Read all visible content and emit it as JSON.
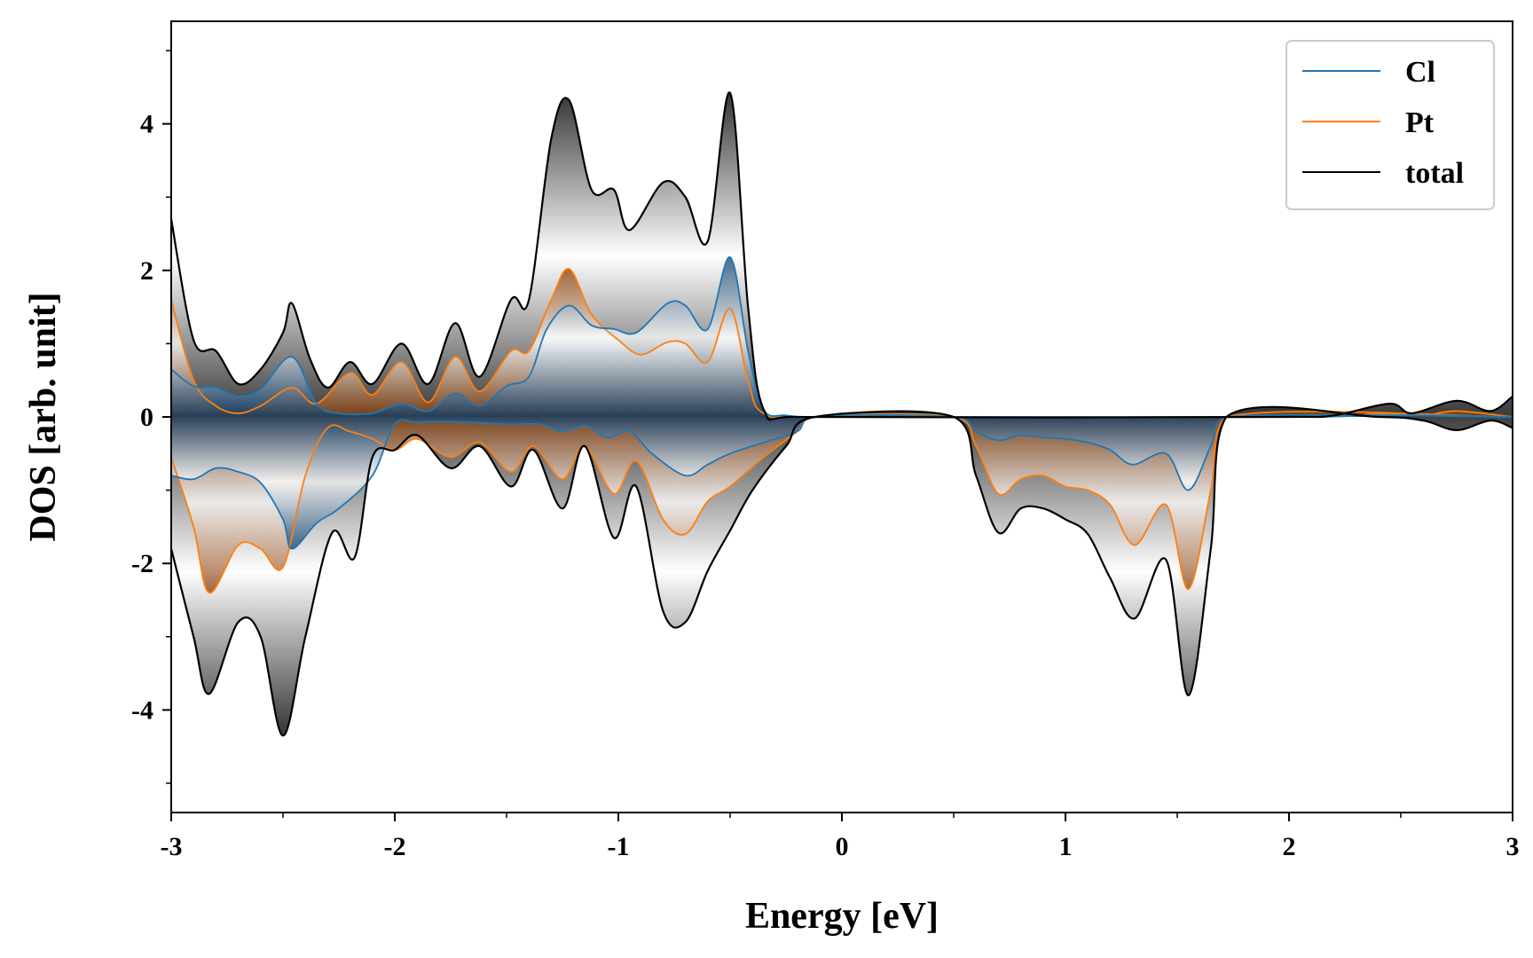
{
  "chart_data": {
    "type": "line",
    "xlabel": "Energy [eV]",
    "ylabel": "DOS [arb. unit]",
    "xlim": [
      -3,
      3
    ],
    "ylim": [
      -5.4,
      5.4
    ],
    "x_ticks": [
      -3,
      -2,
      -1,
      0,
      1,
      2,
      3
    ],
    "x_tick_labels": [
      "-3",
      "-2",
      "-1",
      "0",
      "1",
      "2",
      "3"
    ],
    "y_ticks": [
      -4,
      -2,
      0,
      2,
      4
    ],
    "y_tick_labels": [
      "-4",
      "-2",
      "0",
      "2",
      "4"
    ],
    "grid": false,
    "legend_position": "top-right",
    "fill": "gradient fill between each curve and zero",
    "series": [
      {
        "name": "Cl",
        "color": "#1f77b4",
        "spin_up": [
          [
            -3,
            0.65
          ],
          [
            -2.9,
            0.42
          ],
          [
            -2.8,
            0.4
          ],
          [
            -2.7,
            0.28
          ],
          [
            -2.6,
            0.38
          ],
          [
            -2.46,
            0.82
          ],
          [
            -2.35,
            0.18
          ],
          [
            -2.25,
            0.05
          ],
          [
            -2.1,
            0.05
          ],
          [
            -1.97,
            0.18
          ],
          [
            -1.85,
            0.08
          ],
          [
            -1.73,
            0.32
          ],
          [
            -1.62,
            0.15
          ],
          [
            -1.5,
            0.42
          ],
          [
            -1.4,
            0.55
          ],
          [
            -1.32,
            1.2
          ],
          [
            -1.22,
            1.52
          ],
          [
            -1.12,
            1.25
          ],
          [
            -1.02,
            1.2
          ],
          [
            -0.92,
            1.15
          ],
          [
            -0.78,
            1.55
          ],
          [
            -0.7,
            1.52
          ],
          [
            -0.6,
            1.2
          ],
          [
            -0.5,
            2.18
          ],
          [
            -0.42,
            0.9
          ],
          [
            -0.35,
            0.1
          ],
          [
            -0.25,
            0.02
          ],
          [
            -0.1,
            0
          ],
          [
            0.5,
            0
          ],
          [
            2.0,
            0
          ],
          [
            2.4,
            0.02
          ],
          [
            2.7,
            0.02
          ],
          [
            3,
            0
          ]
        ],
        "spin_down": [
          [
            -3,
            -0.8
          ],
          [
            -2.9,
            -0.85
          ],
          [
            -2.8,
            -0.7
          ],
          [
            -2.7,
            -0.75
          ],
          [
            -2.6,
            -0.9
          ],
          [
            -2.5,
            -1.4
          ],
          [
            -2.46,
            -1.8
          ],
          [
            -2.35,
            -1.45
          ],
          [
            -2.25,
            -1.25
          ],
          [
            -2.1,
            -0.8
          ],
          [
            -2.0,
            -0.1
          ],
          [
            -1.9,
            -0.07
          ],
          [
            -1.7,
            -0.07
          ],
          [
            -1.5,
            -0.1
          ],
          [
            -1.35,
            -0.1
          ],
          [
            -1.25,
            -0.2
          ],
          [
            -1.15,
            -0.12
          ],
          [
            -1.05,
            -0.28
          ],
          [
            -0.95,
            -0.2
          ],
          [
            -0.85,
            -0.5
          ],
          [
            -0.7,
            -0.8
          ],
          [
            -0.6,
            -0.65
          ],
          [
            -0.5,
            -0.5
          ],
          [
            -0.35,
            -0.35
          ],
          [
            -0.2,
            -0.2
          ],
          [
            -0.12,
            0
          ],
          [
            0.5,
            0
          ],
          [
            0.6,
            -0.2
          ],
          [
            0.7,
            -0.32
          ],
          [
            0.8,
            -0.25
          ],
          [
            0.9,
            -0.28
          ],
          [
            1.0,
            -0.3
          ],
          [
            1.1,
            -0.35
          ],
          [
            1.2,
            -0.45
          ],
          [
            1.3,
            -0.65
          ],
          [
            1.45,
            -0.5
          ],
          [
            1.55,
            -1.0
          ],
          [
            1.65,
            -0.4
          ],
          [
            1.72,
            0
          ],
          [
            3,
            0
          ]
        ]
      },
      {
        "name": "Pt",
        "color": "#ff7f0e",
        "spin_up": [
          [
            -3,
            1.6
          ],
          [
            -2.9,
            0.5
          ],
          [
            -2.8,
            0.15
          ],
          [
            -2.7,
            0.05
          ],
          [
            -2.6,
            0.15
          ],
          [
            -2.46,
            0.4
          ],
          [
            -2.35,
            0.18
          ],
          [
            -2.2,
            0.6
          ],
          [
            -2.1,
            0.3
          ],
          [
            -1.97,
            0.75
          ],
          [
            -1.85,
            0.2
          ],
          [
            -1.73,
            0.82
          ],
          [
            -1.62,
            0.35
          ],
          [
            -1.48,
            0.9
          ],
          [
            -1.4,
            0.9
          ],
          [
            -1.3,
            1.6
          ],
          [
            -1.22,
            2.02
          ],
          [
            -1.12,
            1.4
          ],
          [
            -1.0,
            1.05
          ],
          [
            -0.9,
            0.85
          ],
          [
            -0.78,
            1.02
          ],
          [
            -0.7,
            1.0
          ],
          [
            -0.6,
            0.75
          ],
          [
            -0.5,
            1.48
          ],
          [
            -0.42,
            0.5
          ],
          [
            -0.35,
            0.05
          ],
          [
            -0.1,
            0
          ],
          [
            2.0,
            0
          ],
          [
            2.4,
            0.04
          ],
          [
            2.6,
            0.02
          ],
          [
            2.75,
            0.08
          ],
          [
            3,
            0
          ]
        ],
        "spin_down": [
          [
            -3,
            -0.55
          ],
          [
            -2.9,
            -1.5
          ],
          [
            -2.83,
            -2.4
          ],
          [
            -2.7,
            -1.75
          ],
          [
            -2.6,
            -1.8
          ],
          [
            -2.5,
            -2.05
          ],
          [
            -2.4,
            -0.8
          ],
          [
            -2.3,
            -0.15
          ],
          [
            -2.2,
            -0.2
          ],
          [
            -2.1,
            -0.3
          ],
          [
            -2.0,
            -0.45
          ],
          [
            -1.9,
            -0.3
          ],
          [
            -1.75,
            -0.55
          ],
          [
            -1.62,
            -0.35
          ],
          [
            -1.48,
            -0.75
          ],
          [
            -1.38,
            -0.4
          ],
          [
            -1.25,
            -0.85
          ],
          [
            -1.15,
            -0.4
          ],
          [
            -1.02,
            -1.05
          ],
          [
            -0.92,
            -0.6
          ],
          [
            -0.8,
            -1.4
          ],
          [
            -0.7,
            -1.6
          ],
          [
            -0.6,
            -1.15
          ],
          [
            -0.5,
            -0.95
          ],
          [
            -0.35,
            -0.55
          ],
          [
            -0.2,
            -0.2
          ],
          [
            -0.12,
            0
          ],
          [
            0.5,
            0
          ],
          [
            0.6,
            -0.4
          ],
          [
            0.7,
            -1.05
          ],
          [
            0.8,
            -0.85
          ],
          [
            0.9,
            -0.8
          ],
          [
            1.0,
            -0.95
          ],
          [
            1.1,
            -1.0
          ],
          [
            1.2,
            -1.2
          ],
          [
            1.31,
            -1.75
          ],
          [
            1.45,
            -1.2
          ],
          [
            1.55,
            -2.35
          ],
          [
            1.65,
            -1.0
          ],
          [
            1.72,
            0
          ],
          [
            3,
            0
          ]
        ]
      },
      {
        "name": "total",
        "color": "#000000",
        "spin_up": [
          [
            -3,
            2.7
          ],
          [
            -2.9,
            1.05
          ],
          [
            -2.8,
            0.9
          ],
          [
            -2.7,
            0.45
          ],
          [
            -2.6,
            0.65
          ],
          [
            -2.5,
            1.15
          ],
          [
            -2.46,
            1.55
          ],
          [
            -2.38,
            0.8
          ],
          [
            -2.3,
            0.4
          ],
          [
            -2.2,
            0.75
          ],
          [
            -2.1,
            0.45
          ],
          [
            -1.97,
            1.0
          ],
          [
            -1.85,
            0.45
          ],
          [
            -1.73,
            1.28
          ],
          [
            -1.62,
            0.55
          ],
          [
            -1.48,
            1.6
          ],
          [
            -1.4,
            1.6
          ],
          [
            -1.3,
            3.8
          ],
          [
            -1.22,
            4.32
          ],
          [
            -1.12,
            3.1
          ],
          [
            -1.02,
            3.1
          ],
          [
            -0.95,
            2.55
          ],
          [
            -0.8,
            3.2
          ],
          [
            -0.7,
            3.0
          ],
          [
            -0.6,
            2.4
          ],
          [
            -0.5,
            4.42
          ],
          [
            -0.42,
            1.5
          ],
          [
            -0.35,
            0.1
          ],
          [
            -0.2,
            0
          ],
          [
            2.0,
            0
          ],
          [
            2.2,
            0.02
          ],
          [
            2.45,
            0.18
          ],
          [
            2.55,
            0.05
          ],
          [
            2.75,
            0.22
          ],
          [
            2.9,
            0.08
          ],
          [
            3,
            0.28
          ]
        ],
        "spin_down": [
          [
            -3,
            -1.8
          ],
          [
            -2.9,
            -3.0
          ],
          [
            -2.83,
            -3.78
          ],
          [
            -2.7,
            -2.8
          ],
          [
            -2.6,
            -3.0
          ],
          [
            -2.5,
            -4.35
          ],
          [
            -2.4,
            -3.0
          ],
          [
            -2.28,
            -1.58
          ],
          [
            -2.18,
            -1.92
          ],
          [
            -2.1,
            -0.55
          ],
          [
            -2.0,
            -0.45
          ],
          [
            -1.9,
            -0.25
          ],
          [
            -1.75,
            -0.7
          ],
          [
            -1.62,
            -0.4
          ],
          [
            -1.48,
            -0.95
          ],
          [
            -1.38,
            -0.45
          ],
          [
            -1.25,
            -1.25
          ],
          [
            -1.15,
            -0.4
          ],
          [
            -1.02,
            -1.65
          ],
          [
            -0.92,
            -0.95
          ],
          [
            -0.8,
            -2.65
          ],
          [
            -0.7,
            -2.8
          ],
          [
            -0.6,
            -2.1
          ],
          [
            -0.5,
            -1.55
          ],
          [
            -0.4,
            -1.0
          ],
          [
            -0.25,
            -0.4
          ],
          [
            -0.12,
            0
          ],
          [
            0.5,
            0
          ],
          [
            0.6,
            -0.8
          ],
          [
            0.7,
            -1.58
          ],
          [
            0.8,
            -1.25
          ],
          [
            0.9,
            -1.25
          ],
          [
            1.0,
            -1.4
          ],
          [
            1.1,
            -1.6
          ],
          [
            1.2,
            -2.2
          ],
          [
            1.31,
            -2.75
          ],
          [
            1.45,
            -1.95
          ],
          [
            1.55,
            -3.8
          ],
          [
            1.65,
            -1.8
          ],
          [
            1.72,
            0
          ],
          [
            2.4,
            0
          ],
          [
            2.6,
            -0.05
          ],
          [
            2.75,
            -0.18
          ],
          [
            2.9,
            -0.05
          ],
          [
            3,
            -0.15
          ]
        ]
      }
    ]
  }
}
